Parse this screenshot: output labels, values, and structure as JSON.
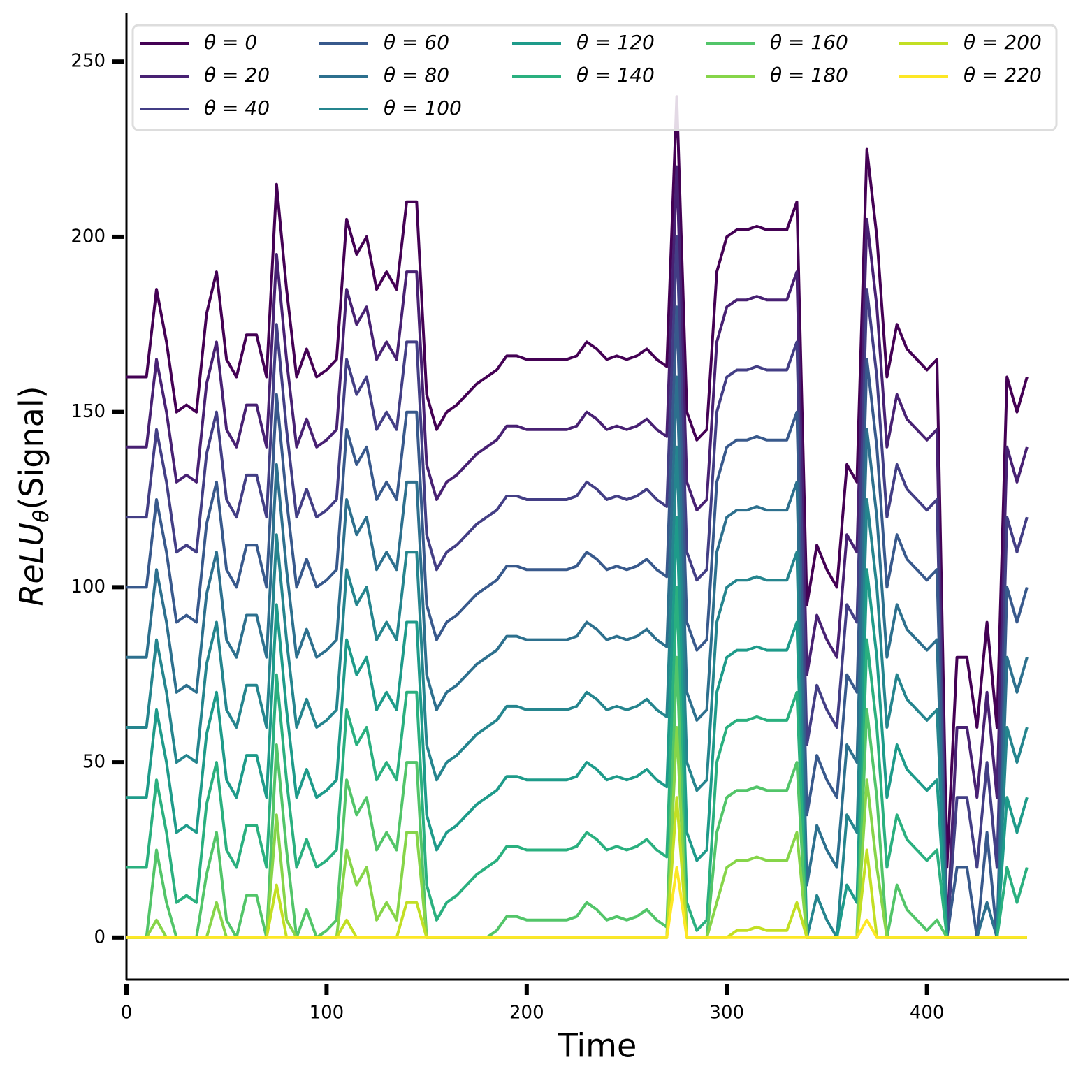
{
  "chart_data": {
    "type": "line",
    "xlabel": "Time",
    "ylabel": {
      "main": "ReLU",
      "sub": "θ",
      "tail": "(Signal)"
    },
    "xlim": [
      0,
      471
    ],
    "xticks": [
      0,
      100,
      200,
      300,
      400
    ],
    "ylim": [
      -12,
      264
    ],
    "yticks": [
      0,
      50,
      100,
      150,
      200,
      250
    ],
    "legend": "upper",
    "x": [
      0,
      5,
      10,
      15,
      20,
      25,
      30,
      35,
      40,
      45,
      50,
      55,
      60,
      65,
      70,
      75,
      80,
      85,
      90,
      95,
      100,
      105,
      110,
      115,
      120,
      125,
      130,
      135,
      140,
      145,
      150,
      155,
      160,
      165,
      170,
      175,
      180,
      185,
      190,
      195,
      200,
      205,
      210,
      215,
      220,
      225,
      230,
      235,
      240,
      245,
      250,
      255,
      260,
      265,
      270,
      275,
      280,
      285,
      290,
      295,
      300,
      305,
      310,
      315,
      320,
      325,
      330,
      335,
      340,
      345,
      350,
      355,
      360,
      365,
      370,
      375,
      380,
      385,
      390,
      395,
      400,
      405,
      410,
      415,
      420,
      425,
      430,
      435,
      440,
      445,
      450
    ],
    "series": [
      {
        "name": "θ = 0",
        "color": "#440154",
        "values": [
          160,
          160,
          160,
          185,
          170,
          150,
          152,
          150,
          178,
          190,
          165,
          160,
          172,
          172,
          160,
          215,
          185,
          160,
          168,
          160,
          162,
          165,
          205,
          195,
          200,
          185,
          190,
          185,
          210,
          210,
          155,
          145,
          150,
          152,
          155,
          158,
          160,
          162,
          166,
          166,
          165,
          165,
          165,
          165,
          165,
          166,
          170,
          168,
          165,
          166,
          165,
          166,
          168,
          165,
          163,
          240,
          150,
          142,
          145,
          190,
          200,
          202,
          202,
          203,
          202,
          202,
          202,
          210,
          95,
          112,
          105,
          100,
          135,
          130,
          225,
          200,
          160,
          175,
          168,
          165,
          162,
          165,
          20,
          80,
          80,
          60,
          90,
          60,
          160,
          150,
          160
        ]
      },
      {
        "name": "θ = 20",
        "color": "#482173",
        "values": [
          140,
          140,
          140,
          165,
          150,
          130,
          132,
          130,
          158,
          170,
          145,
          140,
          152,
          152,
          140,
          195,
          165,
          140,
          148,
          140,
          142,
          145,
          185,
          175,
          180,
          165,
          170,
          165,
          190,
          190,
          135,
          125,
          130,
          132,
          135,
          138,
          140,
          142,
          146,
          146,
          145,
          145,
          145,
          145,
          145,
          146,
          150,
          148,
          145,
          146,
          145,
          146,
          148,
          145,
          143,
          220,
          130,
          122,
          125,
          170,
          180,
          182,
          182,
          183,
          182,
          182,
          182,
          190,
          75,
          92,
          85,
          80,
          115,
          110,
          205,
          180,
          140,
          155,
          148,
          145,
          142,
          145,
          0,
          60,
          60,
          40,
          70,
          40,
          140,
          130,
          140
        ]
      },
      {
        "name": "θ = 40",
        "color": "#433e85",
        "values": [
          120,
          120,
          120,
          145,
          130,
          110,
          112,
          110,
          138,
          150,
          125,
          120,
          132,
          132,
          120,
          175,
          145,
          120,
          128,
          120,
          122,
          125,
          165,
          155,
          160,
          145,
          150,
          145,
          170,
          170,
          115,
          105,
          110,
          112,
          115,
          118,
          120,
          122,
          126,
          126,
          125,
          125,
          125,
          125,
          125,
          126,
          130,
          128,
          125,
          126,
          125,
          126,
          128,
          125,
          123,
          200,
          110,
          102,
          105,
          150,
          160,
          162,
          162,
          163,
          162,
          162,
          162,
          170,
          55,
          72,
          65,
          60,
          95,
          90,
          185,
          160,
          120,
          135,
          128,
          125,
          122,
          125,
          0,
          40,
          40,
          20,
          50,
          20,
          120,
          110,
          120
        ]
      },
      {
        "name": "θ = 60",
        "color": "#38598c",
        "values": [
          100,
          100,
          100,
          125,
          110,
          90,
          92,
          90,
          118,
          130,
          105,
          100,
          112,
          112,
          100,
          155,
          125,
          100,
          108,
          100,
          102,
          105,
          145,
          135,
          140,
          125,
          130,
          125,
          150,
          150,
          95,
          85,
          90,
          92,
          95,
          98,
          100,
          102,
          106,
          106,
          105,
          105,
          105,
          105,
          105,
          106,
          110,
          108,
          105,
          106,
          105,
          106,
          108,
          105,
          103,
          180,
          90,
          82,
          85,
          130,
          140,
          142,
          142,
          143,
          142,
          142,
          142,
          150,
          35,
          52,
          45,
          40,
          75,
          70,
          165,
          140,
          100,
          115,
          108,
          105,
          102,
          105,
          0,
          20,
          20,
          0,
          30,
          0,
          100,
          90,
          100
        ]
      },
      {
        "name": "θ = 80",
        "color": "#2d708e",
        "values": [
          80,
          80,
          80,
          105,
          90,
          70,
          72,
          70,
          98,
          110,
          85,
          80,
          92,
          92,
          80,
          135,
          105,
          80,
          88,
          80,
          82,
          85,
          125,
          115,
          120,
          105,
          110,
          105,
          130,
          130,
          75,
          65,
          70,
          72,
          75,
          78,
          80,
          82,
          86,
          86,
          85,
          85,
          85,
          85,
          85,
          86,
          90,
          88,
          85,
          86,
          85,
          86,
          88,
          85,
          83,
          160,
          70,
          62,
          65,
          110,
          120,
          122,
          122,
          123,
          122,
          122,
          122,
          130,
          15,
          32,
          25,
          20,
          55,
          50,
          145,
          120,
          80,
          95,
          88,
          85,
          82,
          85,
          0,
          0,
          0,
          0,
          10,
          0,
          80,
          70,
          80
        ]
      },
      {
        "name": "θ = 100",
        "color": "#25858e",
        "values": [
          60,
          60,
          60,
          85,
          70,
          50,
          52,
          50,
          78,
          90,
          65,
          60,
          72,
          72,
          60,
          115,
          85,
          60,
          68,
          60,
          62,
          65,
          105,
          95,
          100,
          85,
          90,
          85,
          110,
          110,
          55,
          45,
          50,
          52,
          55,
          58,
          60,
          62,
          66,
          66,
          65,
          65,
          65,
          65,
          65,
          66,
          70,
          68,
          65,
          66,
          65,
          66,
          68,
          65,
          63,
          140,
          50,
          42,
          45,
          90,
          100,
          102,
          102,
          103,
          102,
          102,
          102,
          110,
          0,
          12,
          5,
          0,
          35,
          30,
          125,
          100,
          60,
          75,
          68,
          65,
          62,
          65,
          0,
          0,
          0,
          0,
          0,
          0,
          60,
          50,
          60
        ]
      },
      {
        "name": "θ = 120",
        "color": "#1e9b8a",
        "values": [
          40,
          40,
          40,
          65,
          50,
          30,
          32,
          30,
          58,
          70,
          45,
          40,
          52,
          52,
          40,
          95,
          65,
          40,
          48,
          40,
          42,
          45,
          85,
          75,
          80,
          65,
          70,
          65,
          90,
          90,
          35,
          25,
          30,
          32,
          35,
          38,
          40,
          42,
          46,
          46,
          45,
          45,
          45,
          45,
          45,
          46,
          50,
          48,
          45,
          46,
          45,
          46,
          48,
          45,
          43,
          120,
          30,
          22,
          25,
          70,
          80,
          82,
          82,
          83,
          82,
          82,
          82,
          90,
          0,
          0,
          0,
          0,
          15,
          10,
          105,
          80,
          40,
          55,
          48,
          45,
          42,
          45,
          0,
          0,
          0,
          0,
          0,
          0,
          40,
          30,
          40
        ]
      },
      {
        "name": "θ = 140",
        "color": "#2ab07f",
        "values": [
          20,
          20,
          20,
          45,
          30,
          10,
          12,
          10,
          38,
          50,
          25,
          20,
          32,
          32,
          20,
          75,
          45,
          20,
          28,
          20,
          22,
          25,
          65,
          55,
          60,
          45,
          50,
          45,
          70,
          70,
          15,
          5,
          10,
          12,
          15,
          18,
          20,
          22,
          26,
          26,
          25,
          25,
          25,
          25,
          25,
          26,
          30,
          28,
          25,
          26,
          25,
          26,
          28,
          25,
          23,
          100,
          10,
          2,
          5,
          50,
          60,
          62,
          62,
          63,
          62,
          62,
          62,
          70,
          0,
          0,
          0,
          0,
          0,
          0,
          85,
          60,
          20,
          35,
          28,
          25,
          22,
          25,
          0,
          0,
          0,
          0,
          0,
          0,
          20,
          10,
          20
        ]
      },
      {
        "name": "θ = 160",
        "color": "#52c569",
        "values": [
          0,
          0,
          0,
          25,
          10,
          0,
          0,
          0,
          18,
          30,
          5,
          0,
          12,
          12,
          0,
          55,
          25,
          0,
          8,
          0,
          2,
          5,
          45,
          35,
          40,
          25,
          30,
          25,
          50,
          50,
          0,
          0,
          0,
          0,
          0,
          0,
          0,
          2,
          6,
          6,
          5,
          5,
          5,
          5,
          5,
          6,
          10,
          8,
          5,
          6,
          5,
          6,
          8,
          5,
          3,
          80,
          0,
          0,
          0,
          30,
          40,
          42,
          42,
          43,
          42,
          42,
          42,
          50,
          0,
          0,
          0,
          0,
          0,
          0,
          65,
          40,
          0,
          15,
          8,
          5,
          2,
          5,
          0,
          0,
          0,
          0,
          0,
          0,
          0,
          0,
          0
        ]
      },
      {
        "name": "θ = 180",
        "color": "#86d549",
        "values": [
          0,
          0,
          0,
          5,
          0,
          0,
          0,
          0,
          0,
          10,
          0,
          0,
          0,
          0,
          0,
          35,
          5,
          0,
          0,
          0,
          0,
          0,
          25,
          15,
          20,
          5,
          10,
          5,
          30,
          30,
          0,
          0,
          0,
          0,
          0,
          0,
          0,
          0,
          0,
          0,
          0,
          0,
          0,
          0,
          0,
          0,
          0,
          0,
          0,
          0,
          0,
          0,
          0,
          0,
          0,
          60,
          0,
          0,
          0,
          10,
          20,
          22,
          22,
          23,
          22,
          22,
          22,
          30,
          0,
          0,
          0,
          0,
          0,
          0,
          45,
          20,
          0,
          0,
          0,
          0,
          0,
          0,
          0,
          0,
          0,
          0,
          0,
          0,
          0,
          0,
          0
        ]
      },
      {
        "name": "θ = 200",
        "color": "#c2df23",
        "values": [
          0,
          0,
          0,
          0,
          0,
          0,
          0,
          0,
          0,
          0,
          0,
          0,
          0,
          0,
          0,
          15,
          0,
          0,
          0,
          0,
          0,
          0,
          5,
          0,
          0,
          0,
          0,
          0,
          10,
          10,
          0,
          0,
          0,
          0,
          0,
          0,
          0,
          0,
          0,
          0,
          0,
          0,
          0,
          0,
          0,
          0,
          0,
          0,
          0,
          0,
          0,
          0,
          0,
          0,
          0,
          40,
          0,
          0,
          0,
          0,
          0,
          2,
          2,
          3,
          2,
          2,
          2,
          10,
          0,
          0,
          0,
          0,
          0,
          0,
          25,
          0,
          0,
          0,
          0,
          0,
          0,
          0,
          0,
          0,
          0,
          0,
          0,
          0,
          0,
          0,
          0
        ]
      },
      {
        "name": "θ = 220",
        "color": "#fde725",
        "values": [
          0,
          0,
          0,
          0,
          0,
          0,
          0,
          0,
          0,
          0,
          0,
          0,
          0,
          0,
          0,
          0,
          0,
          0,
          0,
          0,
          0,
          0,
          0,
          0,
          0,
          0,
          0,
          0,
          0,
          0,
          0,
          0,
          0,
          0,
          0,
          0,
          0,
          0,
          0,
          0,
          0,
          0,
          0,
          0,
          0,
          0,
          0,
          0,
          0,
          0,
          0,
          0,
          0,
          0,
          0,
          20,
          0,
          0,
          0,
          0,
          0,
          0,
          0,
          0,
          0,
          0,
          0,
          0,
          0,
          0,
          0,
          0,
          0,
          0,
          5,
          0,
          0,
          0,
          0,
          0,
          0,
          0,
          0,
          0,
          0,
          0,
          0,
          0,
          0,
          0,
          0
        ]
      }
    ]
  }
}
